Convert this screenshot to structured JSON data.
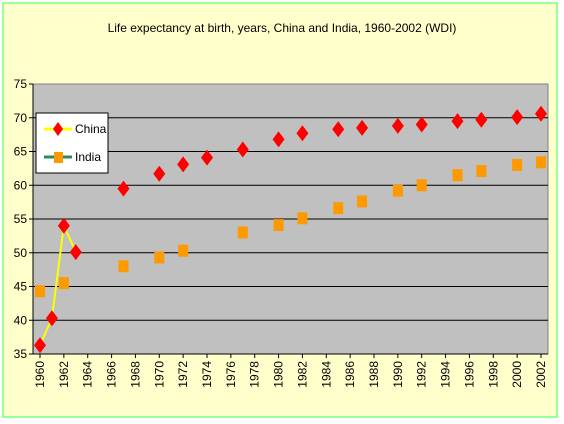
{
  "chart_data": {
    "type": "scatter",
    "title": "Life expectancy at birth, years, China and India, 1960-2002 (WDI)",
    "xlabel": "",
    "ylabel": "",
    "ylim": [
      35,
      75
    ],
    "xlim": [
      1960,
      2002
    ],
    "y_ticks": [
      35,
      40,
      45,
      50,
      55,
      60,
      65,
      70,
      75
    ],
    "x_ticks": [
      1960,
      1962,
      1964,
      1966,
      1968,
      1970,
      1972,
      1974,
      1976,
      1978,
      1980,
      1982,
      1984,
      1986,
      1988,
      1990,
      1992,
      1994,
      1996,
      1998,
      2000,
      2002
    ],
    "grid": "horizontal",
    "legend_position": "top-left",
    "series": [
      {
        "name": "China",
        "color": "#ff0000",
        "line_color": "#ffff00",
        "marker": "diamond",
        "x": [
          1960,
          1961,
          1962,
          1963,
          1967,
          1970,
          1972,
          1974,
          1977,
          1980,
          1982,
          1985,
          1987,
          1990,
          1992,
          1995,
          1997,
          2000,
          2002
        ],
        "y": [
          36.3,
          40.3,
          54.0,
          50.1,
          59.5,
          61.7,
          63.1,
          64.1,
          65.3,
          66.8,
          67.7,
          68.3,
          68.5,
          68.8,
          69.0,
          69.5,
          69.7,
          70.1,
          70.6
        ],
        "connected_until_index": 3
      },
      {
        "name": "India",
        "color": "#ff9900",
        "line_color": "#2e8b57",
        "marker": "square",
        "x": [
          1960,
          1962,
          1967,
          1970,
          1972,
          1977,
          1980,
          1982,
          1985,
          1987,
          1990,
          1992,
          1995,
          1997,
          2000,
          2002
        ],
        "y": [
          44.3,
          45.5,
          48.0,
          49.3,
          50.3,
          53.0,
          54.1,
          55.1,
          56.6,
          57.6,
          59.2,
          60.0,
          61.5,
          62.1,
          63.0,
          63.4
        ]
      }
    ]
  }
}
